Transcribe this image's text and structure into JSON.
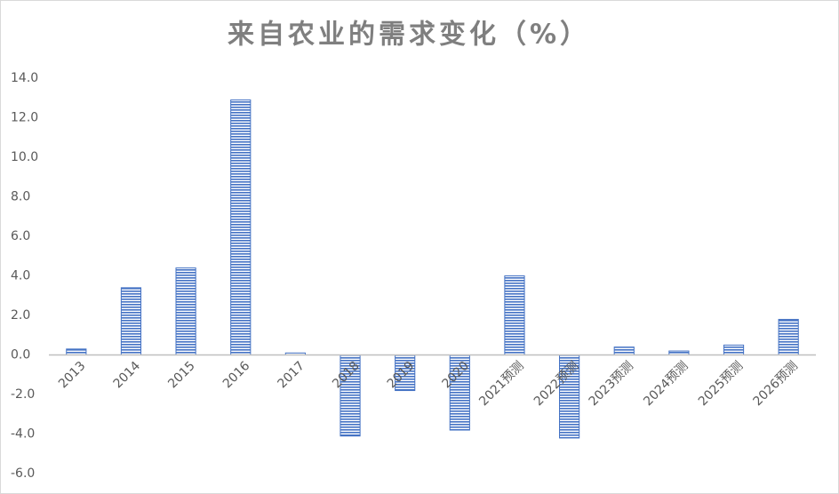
{
  "chart_data": {
    "type": "bar",
    "title": "来自农业的需求变化（%）",
    "categories": [
      "2013",
      "2014",
      "2015",
      "2016",
      "2017",
      "2018",
      "2019",
      "2020",
      "2021预测",
      "2022预测",
      "2023预测",
      "2024预测",
      "2025预测",
      "2026预测"
    ],
    "values": [
      0.3,
      3.4,
      4.4,
      12.9,
      0.1,
      -4.1,
      -1.8,
      -3.8,
      4.0,
      -4.2,
      0.4,
      0.2,
      0.5,
      1.8
    ],
    "color": "#4472c4",
    "ylim": [
      -6,
      14
    ],
    "yticks": [
      {
        "value": -6,
        "label": "-6.0"
      },
      {
        "value": -4,
        "label": "-4.0"
      },
      {
        "value": -2,
        "label": "-2.0"
      },
      {
        "value": 0,
        "label": "0.0"
      },
      {
        "value": 2,
        "label": "2.0"
      },
      {
        "value": 4,
        "label": "4.0"
      },
      {
        "value": 6,
        "label": "6.0"
      },
      {
        "value": 8,
        "label": "8.0"
      },
      {
        "value": 10,
        "label": "10.0"
      },
      {
        "value": 12,
        "label": "12.0"
      },
      {
        "value": 14,
        "label": "14.0"
      }
    ],
    "grid": false
  }
}
